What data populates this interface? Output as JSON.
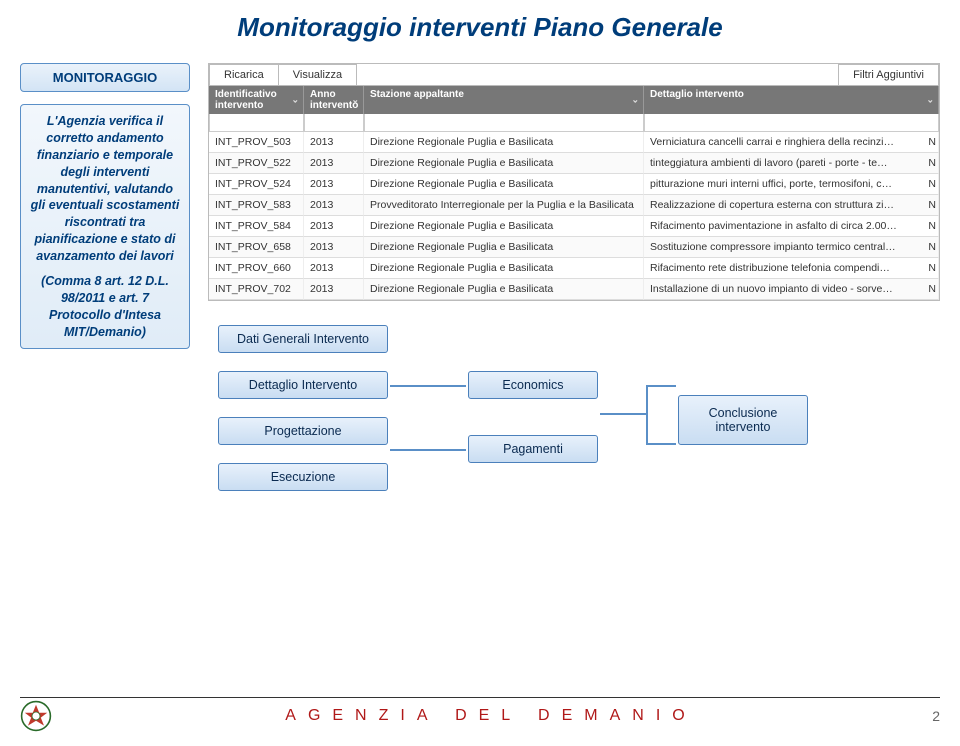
{
  "title": "Monitoraggio interventi Piano Generale",
  "sidebar": {
    "heading": "MONITORAGGIO",
    "description": "L'Agenzia verifica il corretto andamento finanziario e temporale degli interventi manutentivi, valutando gli eventuali scostamenti riscontrati tra pianificazione e stato di avanzamento dei lavori",
    "citation": "(Comma 8 art. 12 D.L. 98/2011 e art. 7 Protocollo d'Intesa MIT/Demanio)"
  },
  "toolbar": {
    "reload": "Ricarica",
    "view": "Visualizza",
    "filters": "Filtri Aggiuntivi"
  },
  "grid": {
    "columns": [
      "Identificativo intervento",
      "Anno intervento",
      "Stazione appaltante",
      "Dettaglio intervento"
    ],
    "rows": [
      [
        "INT_PROV_503",
        "2013",
        "Direzione Regionale Puglia e Basilicata",
        "Verniciatura cancelli carrai e ringhiera della recinzi…"
      ],
      [
        "INT_PROV_522",
        "2013",
        "Direzione Regionale Puglia e Basilicata",
        "tinteggiatura ambienti di lavoro (pareti - porte - te…"
      ],
      [
        "INT_PROV_524",
        "2013",
        "Direzione Regionale Puglia e Basilicata",
        "pitturazione muri interni uffici, porte, termosifoni, c…"
      ],
      [
        "INT_PROV_583",
        "2013",
        "Provveditorato Interregionale per la Puglia e la Basilicata",
        "Realizzazione di copertura esterna con struttura zi…"
      ],
      [
        "INT_PROV_584",
        "2013",
        "Direzione Regionale Puglia e Basilicata",
        "Rifacimento pavimentazione in asfalto di circa 2.00…"
      ],
      [
        "INT_PROV_658",
        "2013",
        "Direzione Regionale Puglia e Basilicata",
        "Sostituzione compressore impianto termico central…"
      ],
      [
        "INT_PROV_660",
        "2013",
        "Direzione Regionale Puglia e Basilicata",
        "Rifacimento rete distribuzione telefonia compendi…"
      ],
      [
        "INT_PROV_702",
        "2013",
        "Direzione Regionale Puglia e Basilicata",
        "Installazione di un nuovo impianto di video - sorve…"
      ]
    ]
  },
  "flow": {
    "b1": "Dati Generali Intervento",
    "b2": "Dettaglio Intervento",
    "b3": "Progettazione",
    "b4": "Esecuzione",
    "b5": "Economics",
    "b6": "Pagamenti",
    "b7": "Conclusione intervento"
  },
  "footer": {
    "agency": "AGENZIA DEL DEMANIO",
    "page": "2"
  },
  "colors": {
    "title": "#003d7a",
    "box_border": "#5a8fc7",
    "footer_red": "#b01818"
  }
}
